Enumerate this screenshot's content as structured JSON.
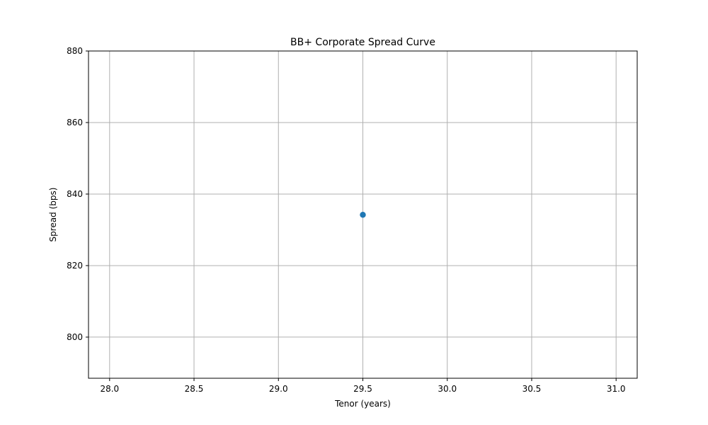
{
  "chart_data": {
    "type": "scatter",
    "title": "BB+ Corporate Spread Curve",
    "xlabel": "Tenor (years)",
    "ylabel": "Spread (bps)",
    "xlim": [
      27.875,
      31.125
    ],
    "ylim": [
      788.5,
      880.0
    ],
    "xticks": [
      28.0,
      28.5,
      29.0,
      29.5,
      30.0,
      30.5,
      31.0
    ],
    "xtick_labels": [
      "28.0",
      "28.5",
      "29.0",
      "29.5",
      "30.0",
      "30.5",
      "31.0"
    ],
    "yticks": [
      800,
      820,
      840,
      860,
      880
    ],
    "ytick_labels": [
      "800",
      "820",
      "840",
      "860",
      "880"
    ],
    "grid": true,
    "series": [
      {
        "color": "#1f77b4",
        "points": [
          {
            "x": 29.5,
            "y": 834.2
          }
        ]
      }
    ]
  }
}
